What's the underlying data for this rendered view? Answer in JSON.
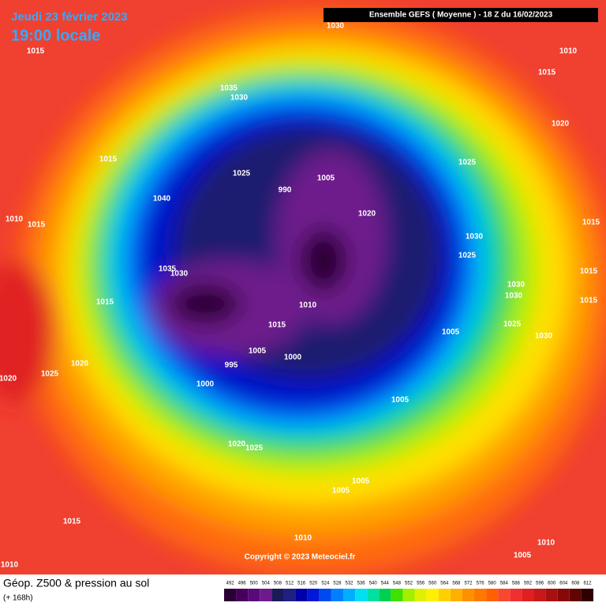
{
  "header": {
    "date": "Jeudi 23 février 2023",
    "local_time": "19:00 locale",
    "run": "Ensemble GEFS  ( Moyenne )  -  18 Z du 16/02/2023"
  },
  "copyright": "Copyright © 2023 Meteociel.fr",
  "footer": {
    "title": "Géop. Z500 & pression au sol",
    "lead": "(+ 168h)"
  },
  "isobar_labels": [
    "1030",
    "1015",
    "1010",
    "1015",
    "1035",
    "1030",
    "1020",
    "1015",
    "1025",
    "1025",
    "990",
    "1005",
    "1040",
    "1020",
    "1010",
    "1015",
    "1015",
    "1030",
    "1025",
    "1035",
    "1030",
    "1015",
    "1030",
    "1030",
    "1015",
    "1010",
    "1015",
    "1015",
    "1025",
    "1005",
    "1030",
    "1005",
    "1000",
    "1020",
    "995",
    "1025",
    "1020",
    "1000",
    "1005",
    "1020",
    "1025",
    "1005",
    "1005",
    "1015",
    "1010",
    "1010",
    "1005",
    "1010"
  ],
  "scale": {
    "values": [
      492,
      496,
      500,
      504,
      508,
      512,
      516,
      520,
      524,
      528,
      532,
      536,
      540,
      544,
      548,
      552,
      556,
      560,
      564,
      568,
      572,
      576,
      580,
      584,
      588,
      592,
      596,
      600,
      604,
      608,
      612
    ],
    "colors": [
      "#2a0033",
      "#46005a",
      "#5a0a78",
      "#6e1a8c",
      "#1a1a5a",
      "#202080",
      "#0000a8",
      "#0018d8",
      "#0048f0",
      "#0080ff",
      "#00b0ff",
      "#00e0f0",
      "#00e0a0",
      "#00d050",
      "#40e000",
      "#a0f000",
      "#e0f000",
      "#fff000",
      "#ffd000",
      "#ffb000",
      "#ff9000",
      "#ff7800",
      "#ff6000",
      "#f84830",
      "#f03030",
      "#e02020",
      "#c81818",
      "#a81010",
      "#880808",
      "#600404",
      "#300000"
    ]
  }
}
